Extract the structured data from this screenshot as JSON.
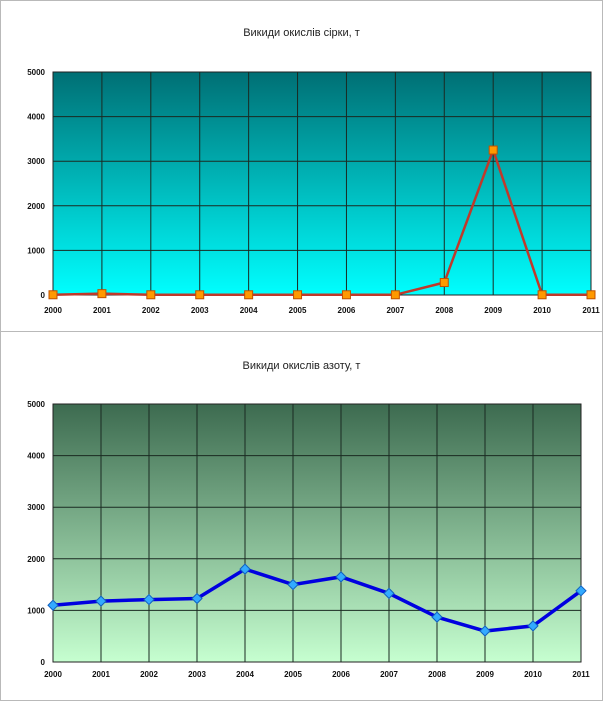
{
  "chart_data": [
    {
      "type": "line",
      "title": "Викиди окислів сірки, т",
      "categories": [
        "2000",
        "2001",
        "2002",
        "2003",
        "2004",
        "2005",
        "2006",
        "2007",
        "2008",
        "2009",
        "2010",
        "2011"
      ],
      "series": [
        {
          "values": [
            5,
            30,
            5,
            5,
            5,
            5,
            5,
            5,
            280,
            3250,
            5,
            5
          ],
          "color": "#c0392b",
          "marker_color": "#ff9900"
        }
      ],
      "yticks": [
        "0",
        "1000",
        "2000",
        "3000",
        "4000",
        "5000"
      ],
      "ylim": [
        0,
        5000
      ],
      "grid": true,
      "background": {
        "top": "#006f74",
        "bottom": "#00ffff"
      }
    },
    {
      "type": "line",
      "title": "Викиди окислів азоту, т",
      "categories": [
        "2000",
        "2001",
        "2002",
        "2003",
        "2004",
        "2005",
        "2006",
        "2007",
        "2008",
        "2009",
        "2010",
        "2011"
      ],
      "series": [
        {
          "values": [
            1100,
            1180,
            1210,
            1230,
            1800,
            1500,
            1650,
            1330,
            870,
            600,
            700,
            1380
          ],
          "color": "#0000e0",
          "marker_color": "#33aaff"
        }
      ],
      "yticks": [
        "0",
        "1000",
        "2000",
        "3000",
        "4000",
        "5000"
      ],
      "ylim": [
        0,
        5000
      ],
      "grid": true,
      "background": {
        "top": "#3d6b50",
        "bottom": "#c6ffd0"
      }
    }
  ]
}
